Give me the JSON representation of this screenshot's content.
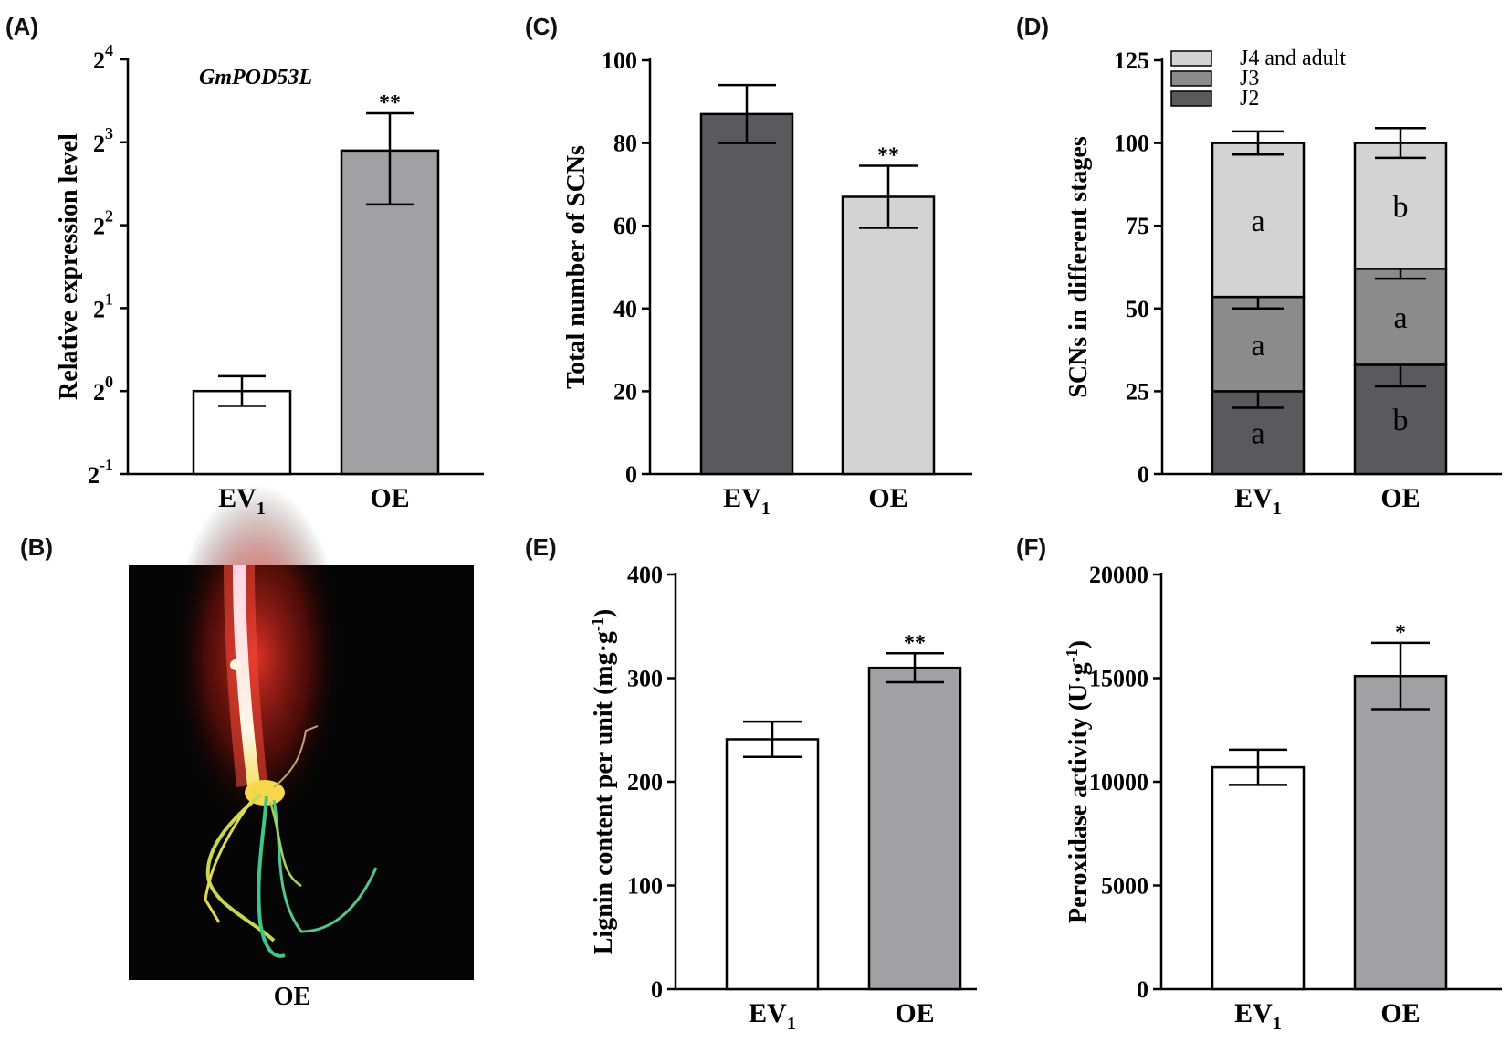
{
  "panels": {
    "A": {
      "label": "(A)"
    },
    "B": {
      "label": "(B)",
      "caption": "OE"
    },
    "C": {
      "label": "(C)"
    },
    "D": {
      "label": "(D)"
    },
    "E": {
      "label": "(E)"
    },
    "F": {
      "label": "(F)"
    }
  },
  "colors": {
    "white": "#ffffff",
    "gray": "#a1a1a3",
    "dark": "#5a5a5c",
    "light": "#d3d3d3",
    "mid": "#8b8b8b"
  },
  "chart_data": [
    {
      "id": "A",
      "type": "bar",
      "title": "",
      "annotation": "GmPOD53L",
      "ylabel": "Relative expression level",
      "yscale": "log2",
      "ylim": [
        -1,
        4
      ],
      "yticks": [
        {
          "base": "2",
          "exp": "4",
          "v": 4
        },
        {
          "base": "2",
          "exp": "3",
          "v": 3
        },
        {
          "base": "2",
          "exp": "2",
          "v": 2
        },
        {
          "base": "2",
          "exp": "1",
          "v": 1
        },
        {
          "base": "2",
          "exp": "0",
          "v": 0
        },
        {
          "base": "2",
          "exp": "-1",
          "v": -1
        }
      ],
      "categories": [
        {
          "main": "EV",
          "sub": "1"
        },
        {
          "main": "OE",
          "sub": ""
        }
      ],
      "values_log2": [
        0,
        2.9
      ],
      "error_log2": [
        [
          -0.18,
          0.18
        ],
        [
          2.25,
          3.35
        ]
      ],
      "colors": [
        "#ffffff",
        "#a1a1a3"
      ],
      "significance": [
        "",
        "**"
      ]
    },
    {
      "id": "C",
      "type": "bar",
      "title": "",
      "ylabel": "Total number of SCNs",
      "ylim": [
        0,
        100
      ],
      "yticks": [
        "0",
        "20",
        "40",
        "60",
        "80",
        "100"
      ],
      "categories": [
        {
          "main": "EV",
          "sub": "1"
        },
        {
          "main": "OE",
          "sub": ""
        }
      ],
      "values": [
        87,
        67
      ],
      "errors": [
        7,
        7.5
      ],
      "colors": [
        "#5a5a5c",
        "#d3d3d3"
      ],
      "significance": [
        "",
        "**"
      ]
    },
    {
      "id": "D",
      "type": "bar",
      "stacked": true,
      "title": "",
      "ylabel": "SCNs in different stages",
      "ylim": [
        0,
        125
      ],
      "yticks": [
        "0",
        "25",
        "50",
        "75",
        "100",
        "125"
      ],
      "categories": [
        {
          "main": "EV",
          "sub": "1"
        },
        {
          "main": "OE",
          "sub": ""
        }
      ],
      "series": [
        {
          "name": "J2",
          "values": [
            25,
            33
          ],
          "errors": [
            5,
            6.5
          ],
          "letters": [
            "a",
            "b"
          ],
          "color": "#5a5a5c"
        },
        {
          "name": "J3",
          "values": [
            28.5,
            29
          ],
          "errors": [
            3.5,
            3
          ],
          "letters": [
            "a",
            "a"
          ],
          "color": "#8b8b8b"
        },
        {
          "name": "J4 and adult",
          "values": [
            46.5,
            38
          ],
          "errors": [
            3.5,
            4.5
          ],
          "letters": [
            "a",
            "b"
          ],
          "color": "#d3d3d3"
        }
      ],
      "legend_order": [
        "J4 and adult",
        "J3",
        "J2"
      ]
    },
    {
      "id": "E",
      "type": "bar",
      "title": "",
      "ylabel": "Lignin content per unit (mg·g",
      "ylabel_sup": "-1",
      "ylabel_end": ")",
      "ylim": [
        0,
        400
      ],
      "yticks": [
        "0",
        "100",
        "200",
        "300",
        "400"
      ],
      "categories": [
        {
          "main": "EV",
          "sub": "1"
        },
        {
          "main": "OE",
          "sub": ""
        }
      ],
      "values": [
        241,
        310
      ],
      "errors": [
        17,
        14
      ],
      "colors": [
        "#ffffff",
        "#a1a1a3"
      ],
      "significance": [
        "",
        "**"
      ]
    },
    {
      "id": "F",
      "type": "bar",
      "title": "",
      "ylabel": "Peroxidase activity (U·g",
      "ylabel_sup": "-1",
      "ylabel_end": ")",
      "ylim": [
        0,
        20000
      ],
      "yticks": [
        "0",
        "5000",
        "10000",
        "15000",
        "20000"
      ],
      "categories": [
        {
          "main": "EV",
          "sub": "1"
        },
        {
          "main": "OE",
          "sub": ""
        }
      ],
      "values": [
        10700,
        15100
      ],
      "errors": [
        850,
        1600
      ],
      "colors": [
        "#ffffff",
        "#a1a1a3"
      ],
      "significance": [
        "",
        "*"
      ]
    }
  ]
}
